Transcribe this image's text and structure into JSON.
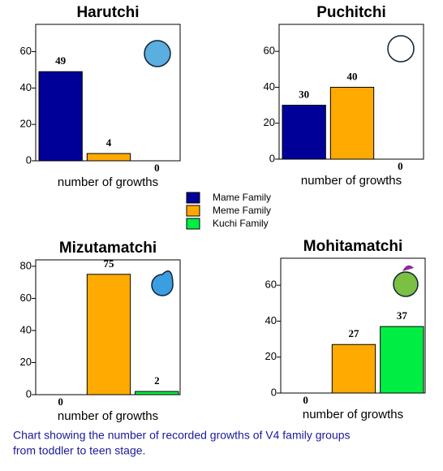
{
  "chart_data": [
    {
      "type": "bar",
      "title": "Harutchi",
      "x_label": "number of growths",
      "categories": [
        "Mame Family",
        "Meme Family",
        "Kuchi Family"
      ],
      "values": [
        49,
        4,
        0
      ],
      "colors": [
        "#000099",
        "#ffaa00",
        "#00ee44"
      ],
      "ylim": [
        0,
        75
      ],
      "yticks": [
        0,
        20,
        40,
        60
      ]
    },
    {
      "type": "bar",
      "title": "Puchitchi",
      "x_label": "number of growths",
      "categories": [
        "Mame Family",
        "Meme Family",
        "Kuchi Family"
      ],
      "values": [
        30,
        40,
        0
      ],
      "colors": [
        "#000099",
        "#ffaa00",
        "#00ee44"
      ],
      "ylim": [
        0,
        75
      ],
      "yticks": [
        0,
        20,
        40,
        60
      ]
    },
    {
      "type": "bar",
      "title": "Mizutamatchi",
      "x_label": "number of growths",
      "categories": [
        "Mame Family",
        "Meme Family",
        "Kuchi Family"
      ],
      "values": [
        0,
        75,
        2
      ],
      "colors": [
        "#000099",
        "#ffaa00",
        "#00ee44"
      ],
      "ylim": [
        0,
        84
      ],
      "yticks": [
        0,
        20,
        40,
        60,
        80
      ]
    },
    {
      "type": "bar",
      "title": "Mohitamatchi",
      "x_label": "number of growths",
      "categories": [
        "Mame Family",
        "Meme Family",
        "Kuchi Family"
      ],
      "values": [
        0,
        27,
        37
      ],
      "colors": [
        "#000099",
        "#ffaa00",
        "#00ee44"
      ],
      "ylim": [
        0,
        75
      ],
      "yticks": [
        0,
        20,
        40,
        60
      ]
    }
  ],
  "legend": [
    {
      "name": "Mame Family",
      "color": "#000099"
    },
    {
      "name": "Meme Family",
      "color": "#ffaa00"
    },
    {
      "name": "Kuchi Family",
      "color": "#00ee44"
    }
  ],
  "caption": [
    "Chart showing the number of recorded growths of V4 family groups",
    "from toddler to teen stage."
  ]
}
